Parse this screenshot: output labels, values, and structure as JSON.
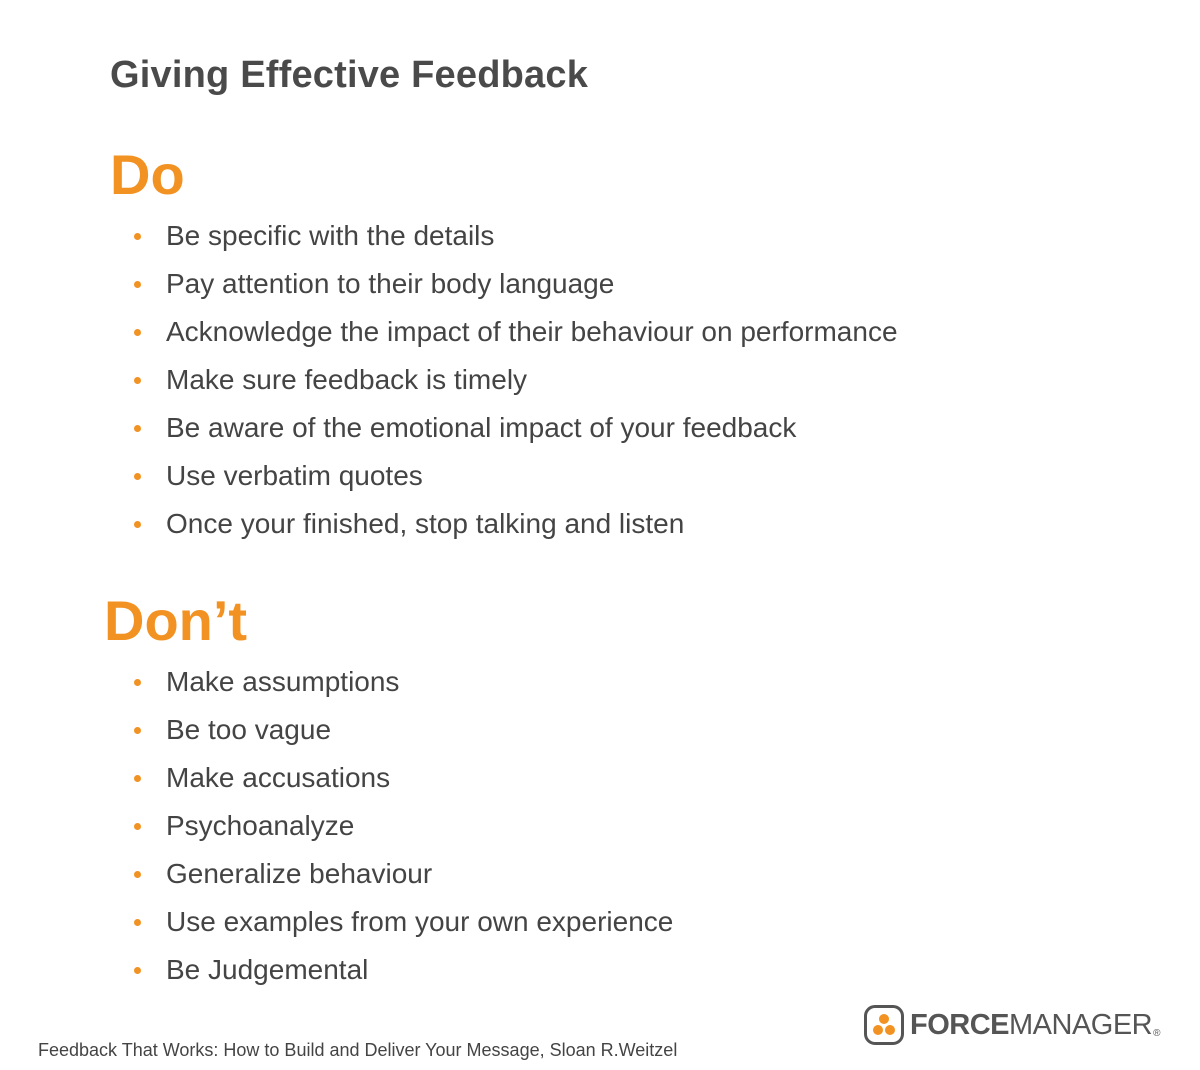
{
  "title": "Giving Effective Feedback",
  "do_section": {
    "heading": "Do",
    "items": [
      "Be specific with the details",
      "Pay attention to their body language",
      "Acknowledge the impact of their behaviour on performance",
      "Make sure feedback is timely",
      "Be aware of the emotional impact of your feedback",
      "Use verbatim quotes",
      "Once your finished, stop talking and listen"
    ]
  },
  "dont_section": {
    "heading": "Don’t",
    "items": [
      "Make assumptions",
      "Be too vague",
      "Make accusations",
      "Psychoanalyze",
      "Generalize behaviour",
      "Use examples from your own experience",
      "Be Judgemental"
    ]
  },
  "source": "Feedback That Works: How to Build and Deliver Your Message, Sloan R.Weitzel",
  "logo": {
    "word_strong": "FORCE",
    "word_light": "MANAGER",
    "registered": "®"
  },
  "colors": {
    "accent": "#f29222",
    "text": "#444444",
    "title": "#4a4a4a"
  }
}
